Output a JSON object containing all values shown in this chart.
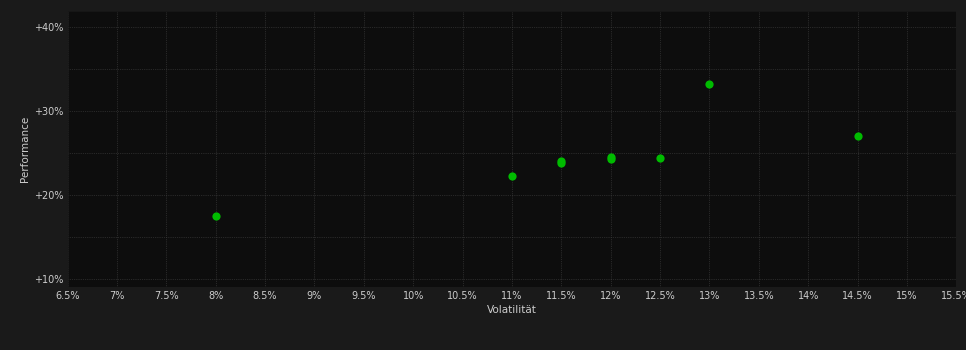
{
  "points_x": [
    0.08,
    0.11,
    0.115,
    0.115,
    0.12,
    0.12,
    0.125,
    0.13,
    0.145
  ],
  "points_y": [
    0.175,
    0.222,
    0.238,
    0.24,
    0.245,
    0.243,
    0.244,
    0.332,
    0.27
  ],
  "point_color": "#00bb00",
  "bg_color": "#1a1a1a",
  "plot_bg_color": "#0d0d0d",
  "grid_color": "#444444",
  "axis_label_color": "#cccccc",
  "tick_label_color": "#cccccc",
  "xlabel": "Volatilität",
  "ylabel": "Performance",
  "xlim_min": 0.065,
  "xlim_max": 0.155,
  "ylim_min": 0.09,
  "ylim_max": 0.42,
  "xticks": [
    0.065,
    0.07,
    0.075,
    0.08,
    0.085,
    0.09,
    0.095,
    0.1,
    0.105,
    0.11,
    0.115,
    0.12,
    0.125,
    0.13,
    0.135,
    0.14,
    0.145,
    0.15,
    0.155
  ],
  "xtick_labels": [
    "6.5%",
    "7%",
    "7.5%",
    "8%",
    "8.5%",
    "9%",
    "9.5%",
    "10%",
    "10.5%",
    "11%",
    "11.5%",
    "12%",
    "12.5%",
    "13%",
    "13.5%",
    "14%",
    "14.5%",
    "15%",
    "15.5%"
  ],
  "yticks": [
    0.1,
    0.15,
    0.2,
    0.25,
    0.3,
    0.35,
    0.4
  ],
  "ytick_labels": [
    "+10%",
    "",
    "+20%",
    "",
    "+30%",
    "",
    "+40%"
  ],
  "marker_size": 35,
  "font_size_ticks": 7,
  "font_size_labels": 7.5
}
